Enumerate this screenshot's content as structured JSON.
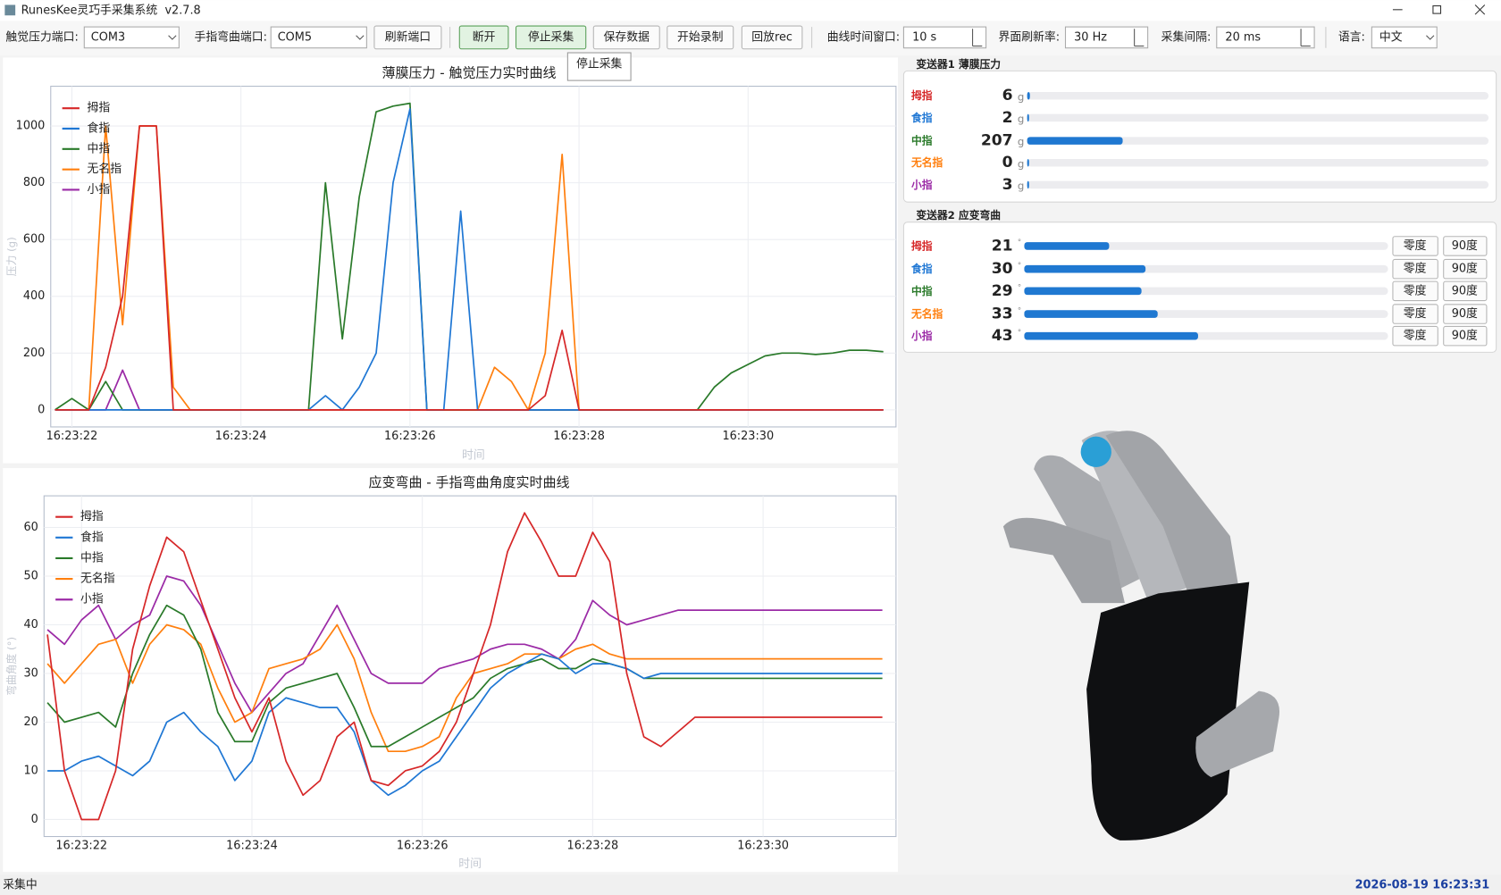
{
  "window": {
    "title": "RunesKee灵巧手采集系统  v2.7.8"
  },
  "toolbar": {
    "tactile_port_label": "触觉压力端口:",
    "tactile_port": "COM3",
    "bend_port_label": "手指弯曲端口:",
    "bend_port": "COM5",
    "buttons": [
      "刷新端口",
      "断开",
      "停止采集",
      "保存数据",
      "开始录制",
      "回放rec"
    ],
    "time_window_label": "曲线时间窗口:",
    "time_window": "10 s",
    "refresh_label": "界面刷新率:",
    "refresh": "30 Hz",
    "interval_label": "采集间隔:",
    "interval": "20 ms",
    "language_label": "语言:",
    "language": "中文",
    "tooltip": "停止采集"
  },
  "chart_data": [
    {
      "type": "line",
      "title": "薄膜压力 - 触觉压力实时曲线",
      "x_label": "时间",
      "y_label": "压力 (g)",
      "grid": true,
      "xlim": [
        21.75,
        31.75
      ],
      "ylim": [
        -60,
        1140
      ],
      "xticks": [
        {
          "value": 22,
          "label": "16:23:22"
        },
        {
          "value": 24,
          "label": "16:23:24"
        },
        {
          "value": 26,
          "label": "16:23:26"
        },
        {
          "value": 28,
          "label": "16:23:28"
        },
        {
          "value": 30,
          "label": "16:23:30"
        }
      ],
      "yticks": [
        0,
        200,
        400,
        600,
        800,
        1000
      ],
      "x": [
        21.8,
        22.0,
        22.2,
        22.4,
        22.6,
        22.8,
        23.0,
        23.2,
        23.4,
        23.6,
        23.8,
        24.0,
        24.2,
        24.4,
        24.6,
        24.8,
        25.0,
        25.2,
        25.4,
        25.6,
        25.8,
        26.0,
        26.2,
        26.4,
        26.6,
        26.8,
        27.0,
        27.2,
        27.4,
        27.6,
        27.8,
        28.0,
        28.2,
        28.4,
        28.6,
        28.8,
        29.0,
        29.2,
        29.4,
        29.6,
        29.8,
        30.0,
        30.2,
        30.4,
        30.6,
        30.8,
        31.0,
        31.2,
        31.4,
        31.6
      ],
      "series": [
        {
          "name": "拇指",
          "color": "#d62728",
          "values": [
            0,
            0,
            0,
            150,
            400,
            1000,
            1000,
            0,
            0,
            0,
            0,
            0,
            0,
            0,
            0,
            0,
            0,
            0,
            0,
            0,
            0,
            0,
            0,
            0,
            0,
            0,
            0,
            0,
            0,
            50,
            280,
            0,
            0,
            0,
            0,
            0,
            0,
            0,
            0,
            0,
            0,
            0,
            0,
            0,
            0,
            0,
            0,
            0,
            0,
            0
          ]
        },
        {
          "name": "食指",
          "color": "#1f77d4",
          "values": [
            0,
            0,
            0,
            0,
            0,
            0,
            0,
            0,
            0,
            0,
            0,
            0,
            0,
            0,
            0,
            0,
            50,
            0,
            80,
            200,
            800,
            1060,
            0,
            0,
            700,
            0,
            0,
            0,
            0,
            0,
            0,
            0,
            0,
            0,
            0,
            0,
            0,
            0,
            0,
            0,
            0,
            0,
            0,
            0,
            0,
            0,
            0,
            0,
            0,
            0
          ]
        },
        {
          "name": "中指",
          "color": "#2a7a2a",
          "values": [
            0,
            40,
            0,
            100,
            0,
            0,
            0,
            0,
            0,
            0,
            0,
            0,
            0,
            0,
            0,
            0,
            800,
            250,
            750,
            1050,
            1070,
            1080,
            0,
            0,
            0,
            0,
            0,
            0,
            0,
            0,
            0,
            0,
            0,
            0,
            0,
            0,
            0,
            0,
            0,
            80,
            130,
            160,
            190,
            200,
            200,
            195,
            200,
            210,
            210,
            205
          ]
        },
        {
          "name": "无名指",
          "color": "#ff7f0e",
          "values": [
            0,
            0,
            0,
            1000,
            300,
            1000,
            1000,
            80,
            0,
            0,
            0,
            0,
            0,
            0,
            0,
            0,
            0,
            0,
            0,
            0,
            0,
            0,
            0,
            0,
            0,
            0,
            150,
            100,
            0,
            200,
            900,
            0,
            0,
            0,
            0,
            0,
            0,
            0,
            0,
            0,
            0,
            0,
            0,
            0,
            0,
            0,
            0,
            0,
            0,
            0
          ]
        },
        {
          "name": "小指",
          "color": "#9b2aa6",
          "values": [
            0,
            0,
            0,
            0,
            140,
            0,
            0,
            0,
            0,
            0,
            0,
            0,
            0,
            0,
            0,
            0,
            0,
            0,
            0,
            0,
            0,
            0,
            0,
            0,
            0,
            0,
            0,
            0,
            0,
            0,
            0,
            0,
            0,
            0,
            0,
            0,
            0,
            0,
            0,
            0,
            0,
            0,
            0,
            0,
            0,
            0,
            0,
            0,
            0,
            0
          ]
        }
      ]
    },
    {
      "type": "line",
      "title": "应变弯曲 - 手指弯曲角度实时曲线",
      "x_label": "时间",
      "y_label": "弯曲角度 (°)",
      "grid": true,
      "xlim": [
        21.56,
        31.56
      ],
      "ylim": [
        -3.5,
        66.5
      ],
      "xticks": [
        {
          "value": 22,
          "label": "16:23:22"
        },
        {
          "value": 24,
          "label": "16:23:24"
        },
        {
          "value": 26,
          "label": "16:23:26"
        },
        {
          "value": 28,
          "label": "16:23:28"
        },
        {
          "value": 30,
          "label": "16:23:30"
        }
      ],
      "yticks": [
        0,
        10,
        20,
        30,
        40,
        50,
        60
      ],
      "x": [
        21.6,
        21.8,
        22.0,
        22.2,
        22.4,
        22.6,
        22.8,
        23.0,
        23.2,
        23.4,
        23.6,
        23.8,
        24.0,
        24.2,
        24.4,
        24.6,
        24.8,
        25.0,
        25.2,
        25.4,
        25.6,
        25.8,
        26.0,
        26.2,
        26.4,
        26.6,
        26.8,
        27.0,
        27.2,
        27.4,
        27.6,
        27.8,
        28.0,
        28.2,
        28.4,
        28.6,
        28.8,
        29.0,
        29.2,
        29.4,
        29.6,
        29.8,
        30.0,
        30.2,
        30.4,
        30.6,
        30.8,
        31.0,
        31.2,
        31.4
      ],
      "series": [
        {
          "name": "拇指",
          "color": "#d62728",
          "values": [
            38,
            10,
            0,
            0,
            10,
            35,
            48,
            58,
            55,
            45,
            35,
            25,
            18,
            25,
            12,
            5,
            8,
            17,
            20,
            8,
            7,
            10,
            11,
            14,
            20,
            30,
            40,
            55,
            63,
            57,
            50,
            50,
            59,
            53,
            30,
            17,
            15,
            18,
            21,
            21,
            21,
            21,
            21,
            21,
            21,
            21,
            21,
            21,
            21,
            21
          ]
        },
        {
          "name": "食指",
          "color": "#1f77d4",
          "values": [
            10,
            10,
            12,
            13,
            11,
            9,
            12,
            20,
            22,
            18,
            15,
            8,
            12,
            22,
            25,
            24,
            23,
            23,
            18,
            8,
            5,
            7,
            10,
            12,
            17,
            22,
            27,
            30,
            32,
            34,
            33,
            30,
            32,
            32,
            31,
            29,
            30,
            30,
            30,
            30,
            30,
            30,
            30,
            30,
            30,
            30,
            30,
            30,
            30,
            30
          ]
        },
        {
          "name": "中指",
          "color": "#2a7a2a",
          "values": [
            24,
            20,
            21,
            22,
            19,
            30,
            38,
            44,
            42,
            35,
            22,
            16,
            16,
            24,
            27,
            28,
            29,
            30,
            23,
            15,
            15,
            17,
            19,
            21,
            23,
            25,
            29,
            31,
            32,
            33,
            31,
            31,
            33,
            32,
            31,
            29,
            29,
            29,
            29,
            29,
            29,
            29,
            29,
            29,
            29,
            29,
            29,
            29,
            29,
            29
          ]
        },
        {
          "name": "无名指",
          "color": "#ff7f0e",
          "values": [
            32,
            28,
            32,
            36,
            37,
            28,
            36,
            40,
            39,
            36,
            27,
            20,
            22,
            31,
            32,
            33,
            35,
            40,
            33,
            22,
            14,
            14,
            15,
            17,
            25,
            30,
            31,
            32,
            34,
            34,
            33,
            35,
            36,
            34,
            33,
            33,
            33,
            33,
            33,
            33,
            33,
            33,
            33,
            33,
            33,
            33,
            33,
            33,
            33,
            33
          ]
        },
        {
          "name": "小指",
          "color": "#9b2aa6",
          "values": [
            39,
            36,
            41,
            44,
            37,
            40,
            42,
            50,
            49,
            44,
            36,
            28,
            22,
            26,
            30,
            32,
            38,
            44,
            37,
            30,
            28,
            28,
            28,
            31,
            32,
            33,
            35,
            36,
            36,
            35,
            33,
            37,
            45,
            42,
            40,
            41,
            42,
            43,
            43,
            43,
            43,
            43,
            43,
            43,
            43,
            43,
            43,
            43,
            43,
            43
          ]
        }
      ]
    }
  ],
  "pressure_panel": {
    "title": "变送器1 薄膜压力",
    "unit": "g",
    "bar_range": [
      0,
      1000
    ],
    "rows": [
      {
        "finger": "拇指",
        "color": "#d62728",
        "value": 6
      },
      {
        "finger": "食指",
        "color": "#1f77d4",
        "value": 2
      },
      {
        "finger": "中指",
        "color": "#2a7a2a",
        "value": 207
      },
      {
        "finger": "无名指",
        "color": "#ff7f0e",
        "value": 0
      },
      {
        "finger": "小指",
        "color": "#9b2aa6",
        "value": 3
      }
    ]
  },
  "bend_panel": {
    "title": "变送器2 应变弯曲",
    "unit": "°",
    "bar_range": [
      0,
      90
    ],
    "zero_button": "零度",
    "ninety_button": "90度",
    "rows": [
      {
        "finger": "拇指",
        "color": "#d62728",
        "value": 21
      },
      {
        "finger": "食指",
        "color": "#1f77d4",
        "value": 30
      },
      {
        "finger": "中指",
        "color": "#2a7a2a",
        "value": 29
      },
      {
        "finger": "无名指",
        "color": "#ff7f0e",
        "value": 33
      },
      {
        "finger": "小指",
        "color": "#9b2aa6",
        "value": 43
      }
    ]
  },
  "status": {
    "state": "采集中",
    "datetime": "2026-08-19 16:23:31"
  }
}
